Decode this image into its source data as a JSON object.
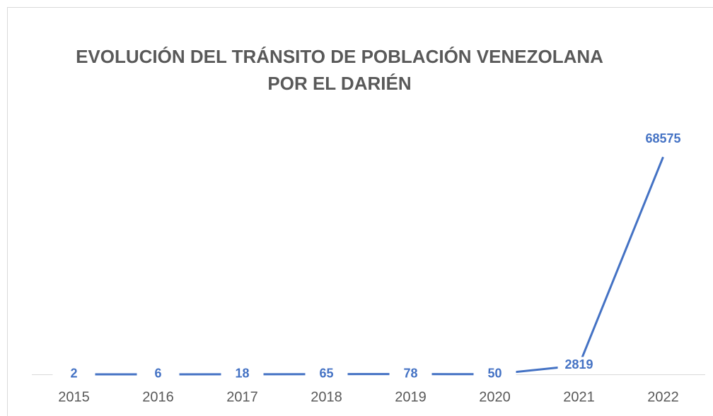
{
  "chart_data": {
    "type": "line",
    "title": [
      "EVOLUCIÓN DEL TRÁNSITO DE POBLACIÓN VENEZOLANA",
      "POR EL DARIÉN"
    ],
    "categories": [
      "2015",
      "2016",
      "2017",
      "2018",
      "2019",
      "2020",
      "2021",
      "2022"
    ],
    "values": [
      2,
      6,
      18,
      65,
      78,
      50,
      2819,
      68575
    ],
    "color": "#4472c4",
    "ylim": [
      0,
      80000
    ]
  }
}
